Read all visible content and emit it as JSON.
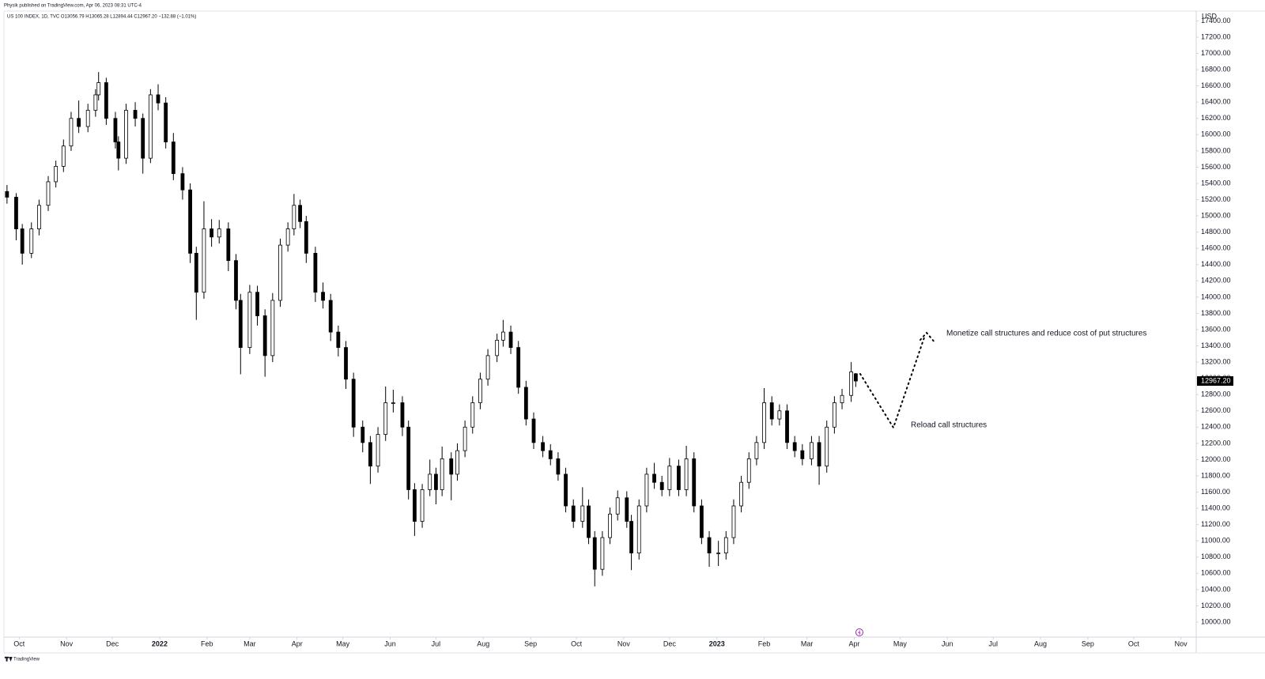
{
  "header": {
    "publisher": "Physik published on TradingView.com, Apr 06, 2023 08:31 UTC-4",
    "symbol_line": "US 100 INDEX, 1D, TVC  O13056.79  H13065.28  L12894.44  C12967.20  −132.88 (−1.01%)",
    "currency": "USD"
  },
  "footer": {
    "brand": "TradingView"
  },
  "chart_data": {
    "type": "candlestick",
    "up_color": "#ffffff",
    "down_color": "#000000",
    "outline_color": "#000000",
    "xlim": [
      -10,
      771
    ],
    "ylim": [
      9815,
      17521
    ],
    "xticks": [
      {
        "value": 0,
        "label": "Oct"
      },
      {
        "value": 31,
        "label": "Nov"
      },
      {
        "value": 61,
        "label": "Dec"
      },
      {
        "value": 92,
        "label": "2022"
      },
      {
        "value": 123,
        "label": "Feb"
      },
      {
        "value": 151,
        "label": "Mar"
      },
      {
        "value": 182,
        "label": "Apr"
      },
      {
        "value": 212,
        "label": "May"
      },
      {
        "value": 243,
        "label": "Jun"
      },
      {
        "value": 273,
        "label": "Jul"
      },
      {
        "value": 304,
        "label": "Aug"
      },
      {
        "value": 335,
        "label": "Sep"
      },
      {
        "value": 365,
        "label": "Oct"
      },
      {
        "value": 396,
        "label": "Nov"
      },
      {
        "value": 426,
        "label": "Dec"
      },
      {
        "value": 457,
        "label": "2023"
      },
      {
        "value": 488,
        "label": "Feb"
      },
      {
        "value": 516,
        "label": "Mar"
      },
      {
        "value": 547,
        "label": "Apr"
      },
      {
        "value": 577,
        "label": "May"
      },
      {
        "value": 608,
        "label": "Jun"
      },
      {
        "value": 638,
        "label": "Jul"
      },
      {
        "value": 669,
        "label": "Aug"
      },
      {
        "value": 700,
        "label": "Sep"
      },
      {
        "value": 730,
        "label": "Oct"
      },
      {
        "value": 761,
        "label": "Nov"
      }
    ],
    "yticks": [
      {
        "value": 10000,
        "label": "10000.00"
      },
      {
        "value": 10200,
        "label": "10200.00"
      },
      {
        "value": 10400,
        "label": "10400.00"
      },
      {
        "value": 10600,
        "label": "10600.00"
      },
      {
        "value": 10800,
        "label": "10800.00"
      },
      {
        "value": 11000,
        "label": "11000.00"
      },
      {
        "value": 11200,
        "label": "11200.00"
      },
      {
        "value": 11400,
        "label": "11400.00"
      },
      {
        "value": 11600,
        "label": "11600.00"
      },
      {
        "value": 11800,
        "label": "11800.00"
      },
      {
        "value": 12000,
        "label": "12000.00"
      },
      {
        "value": 12200,
        "label": "12200.00"
      },
      {
        "value": 12400,
        "label": "12400.00"
      },
      {
        "value": 12600,
        "label": "12600.00"
      },
      {
        "value": 12800,
        "label": "12800.00"
      },
      {
        "value": 13000,
        "label": "13000.00"
      },
      {
        "value": 13200,
        "label": "13200.00"
      },
      {
        "value": 13400,
        "label": "13400.00"
      },
      {
        "value": 13600,
        "label": "13600.00"
      },
      {
        "value": 13800,
        "label": "13800.00"
      },
      {
        "value": 14000,
        "label": "14000.00"
      },
      {
        "value": 14200,
        "label": "14200.00"
      },
      {
        "value": 14400,
        "label": "14400.00"
      },
      {
        "value": 14600,
        "label": "14600.00"
      },
      {
        "value": 14800,
        "label": "14800.00"
      },
      {
        "value": 15000,
        "label": "15000.00"
      },
      {
        "value": 15200,
        "label": "15200.00"
      },
      {
        "value": 15400,
        "label": "15400.00"
      },
      {
        "value": 15600,
        "label": "15600.00"
      },
      {
        "value": 15800,
        "label": "15800.00"
      },
      {
        "value": 16000,
        "label": "16000.00"
      },
      {
        "value": 16200,
        "label": "16200.00"
      },
      {
        "value": 16400,
        "label": "16400.00"
      },
      {
        "value": 16600,
        "label": "16600.00"
      },
      {
        "value": 16800,
        "label": "16800.00"
      },
      {
        "value": 17000,
        "label": "17000.00"
      },
      {
        "value": 17200,
        "label": "17200.00"
      },
      {
        "value": 17400,
        "label": "17400.00"
      }
    ],
    "last_price": {
      "value": 12967.2,
      "label": "12967.20"
    },
    "annotations": [
      "Monetize call structures and reduce cost of put structures",
      "Reload call structures"
    ],
    "candles": [
      {
        "x": -8,
        "open": 15300,
        "high": 15380,
        "low": 15150,
        "close": 15230
      },
      {
        "x": -2,
        "open": 15230,
        "high": 15280,
        "low": 14700,
        "close": 14840
      },
      {
        "x": 2,
        "open": 14840,
        "high": 14900,
        "low": 14400,
        "close": 14540
      },
      {
        "x": 8,
        "open": 14540,
        "high": 14920,
        "low": 14480,
        "close": 14840
      },
      {
        "x": 13,
        "open": 14840,
        "high": 15200,
        "low": 14760,
        "close": 15130
      },
      {
        "x": 19,
        "open": 15130,
        "high": 15490,
        "low": 15060,
        "close": 15420
      },
      {
        "x": 24,
        "open": 15420,
        "high": 15680,
        "low": 15350,
        "close": 15610
      },
      {
        "x": 29,
        "open": 15610,
        "high": 15940,
        "low": 15540,
        "close": 15860
      },
      {
        "x": 34,
        "open": 15860,
        "high": 16280,
        "low": 15800,
        "close": 16200
      },
      {
        "x": 39,
        "open": 16200,
        "high": 16420,
        "low": 16020,
        "close": 16100
      },
      {
        "x": 45,
        "open": 16100,
        "high": 16380,
        "low": 16030,
        "close": 16300
      },
      {
        "x": 50,
        "open": 16300,
        "high": 16560,
        "low": 16220,
        "close": 16490
      },
      {
        "x": 52,
        "open": 16490,
        "high": 16770,
        "low": 16420,
        "close": 16640
      },
      {
        "x": 57,
        "open": 16640,
        "high": 16700,
        "low": 16120,
        "close": 16200
      },
      {
        "x": 63,
        "open": 16200,
        "high": 16280,
        "low": 15830,
        "close": 15910
      },
      {
        "x": 65,
        "open": 15910,
        "high": 15980,
        "low": 15560,
        "close": 15710
      },
      {
        "x": 70,
        "open": 15710,
        "high": 16380,
        "low": 15640,
        "close": 16300
      },
      {
        "x": 76,
        "open": 16300,
        "high": 16400,
        "low": 16100,
        "close": 16200
      },
      {
        "x": 81,
        "open": 16200,
        "high": 16260,
        "low": 15520,
        "close": 15710
      },
      {
        "x": 86,
        "open": 15710,
        "high": 16560,
        "low": 15650,
        "close": 16490
      },
      {
        "x": 91,
        "open": 16490,
        "high": 16620,
        "low": 16300,
        "close": 16390
      },
      {
        "x": 96,
        "open": 16390,
        "high": 16460,
        "low": 15830,
        "close": 15910
      },
      {
        "x": 101,
        "open": 15910,
        "high": 16020,
        "low": 15440,
        "close": 15520
      },
      {
        "x": 107,
        "open": 15520,
        "high": 15600,
        "low": 15200,
        "close": 15320
      },
      {
        "x": 112,
        "open": 15320,
        "high": 15400,
        "low": 14420,
        "close": 14540
      },
      {
        "x": 116,
        "open": 14540,
        "high": 14620,
        "low": 13720,
        "close": 14060
      },
      {
        "x": 121,
        "open": 14060,
        "high": 15180,
        "low": 13980,
        "close": 14840
      },
      {
        "x": 126,
        "open": 14840,
        "high": 14960,
        "low": 14620,
        "close": 14740
      },
      {
        "x": 131,
        "open": 14740,
        "high": 14950,
        "low": 14660,
        "close": 14840
      },
      {
        "x": 137,
        "open": 14840,
        "high": 14920,
        "low": 14320,
        "close": 14450
      },
      {
        "x": 142,
        "open": 14450,
        "high": 14530,
        "low": 13850,
        "close": 13960
      },
      {
        "x": 145,
        "open": 13960,
        "high": 14040,
        "low": 13050,
        "close": 13380
      },
      {
        "x": 151,
        "open": 13380,
        "high": 14150,
        "low": 13300,
        "close": 14060
      },
      {
        "x": 156,
        "open": 14060,
        "high": 14140,
        "low": 13650,
        "close": 13770
      },
      {
        "x": 161,
        "open": 13770,
        "high": 13850,
        "low": 13020,
        "close": 13280
      },
      {
        "x": 166,
        "open": 13280,
        "high": 14050,
        "low": 13200,
        "close": 13960
      },
      {
        "x": 171,
        "open": 13960,
        "high": 14720,
        "low": 13880,
        "close": 14640
      },
      {
        "x": 176,
        "open": 14640,
        "high": 14920,
        "low": 14560,
        "close": 14840
      },
      {
        "x": 180,
        "open": 14840,
        "high": 15270,
        "low": 14760,
        "close": 15130
      },
      {
        "x": 184,
        "open": 15130,
        "high": 15200,
        "low": 14850,
        "close": 14930
      },
      {
        "x": 188,
        "open": 14930,
        "high": 15000,
        "low": 14420,
        "close": 14540
      },
      {
        "x": 194,
        "open": 14540,
        "high": 14620,
        "low": 13940,
        "close": 14060
      },
      {
        "x": 199,
        "open": 14060,
        "high": 14180,
        "low": 13860,
        "close": 13960
      },
      {
        "x": 204,
        "open": 13960,
        "high": 14040,
        "low": 13460,
        "close": 13570
      },
      {
        "x": 209,
        "open": 13570,
        "high": 13650,
        "low": 13270,
        "close": 13380
      },
      {
        "x": 214,
        "open": 13380,
        "high": 13460,
        "low": 12870,
        "close": 12990
      },
      {
        "x": 219,
        "open": 12990,
        "high": 13070,
        "low": 12280,
        "close": 12400
      },
      {
        "x": 225,
        "open": 12400,
        "high": 12480,
        "low": 12090,
        "close": 12210
      },
      {
        "x": 230,
        "open": 12210,
        "high": 12290,
        "low": 11700,
        "close": 11920
      },
      {
        "x": 235,
        "open": 11920,
        "high": 12400,
        "low": 11840,
        "close": 12310
      },
      {
        "x": 240,
        "open": 12310,
        "high": 12900,
        "low": 12230,
        "close": 12700
      },
      {
        "x": 245,
        "open": 12700,
        "high": 12860,
        "low": 12580,
        "close": 12700
      },
      {
        "x": 251,
        "open": 12700,
        "high": 12780,
        "low": 12290,
        "close": 12400
      },
      {
        "x": 255,
        "open": 12400,
        "high": 12480,
        "low": 11510,
        "close": 11630
      },
      {
        "x": 259,
        "open": 11630,
        "high": 11710,
        "low": 11060,
        "close": 11240
      },
      {
        "x": 264,
        "open": 11240,
        "high": 11700,
        "low": 11160,
        "close": 11630
      },
      {
        "x": 269,
        "open": 11630,
        "high": 12000,
        "low": 11550,
        "close": 11820
      },
      {
        "x": 273,
        "open": 11820,
        "high": 11900,
        "low": 11450,
        "close": 11630
      },
      {
        "x": 277,
        "open": 11630,
        "high": 12160,
        "low": 11550,
        "close": 12010
      },
      {
        "x": 283,
        "open": 12010,
        "high": 12090,
        "low": 11500,
        "close": 11820
      },
      {
        "x": 287,
        "open": 11820,
        "high": 12200,
        "low": 11740,
        "close": 12110
      },
      {
        "x": 292,
        "open": 12110,
        "high": 12480,
        "low": 12030,
        "close": 12400
      },
      {
        "x": 297,
        "open": 12400,
        "high": 12780,
        "low": 12320,
        "close": 12700
      },
      {
        "x": 302,
        "open": 12700,
        "high": 13070,
        "low": 12620,
        "close": 12990
      },
      {
        "x": 307,
        "open": 12990,
        "high": 13360,
        "low": 12910,
        "close": 13280
      },
      {
        "x": 313,
        "open": 13280,
        "high": 13550,
        "low": 13200,
        "close": 13470
      },
      {
        "x": 317,
        "open": 13470,
        "high": 13720,
        "low": 13390,
        "close": 13570
      },
      {
        "x": 322,
        "open": 13570,
        "high": 13650,
        "low": 13300,
        "close": 13380
      },
      {
        "x": 327,
        "open": 13380,
        "high": 13460,
        "low": 12810,
        "close": 12890
      },
      {
        "x": 332,
        "open": 12890,
        "high": 12970,
        "low": 12420,
        "close": 12500
      },
      {
        "x": 337,
        "open": 12500,
        "high": 12580,
        "low": 12130,
        "close": 12210
      },
      {
        "x": 343,
        "open": 12210,
        "high": 12290,
        "low": 12030,
        "close": 12110
      },
      {
        "x": 348,
        "open": 12110,
        "high": 12190,
        "low": 11930,
        "close": 12010
      },
      {
        "x": 353,
        "open": 12010,
        "high": 12090,
        "low": 11740,
        "close": 11820
      },
      {
        "x": 358,
        "open": 11820,
        "high": 11900,
        "low": 11350,
        "close": 11430
      },
      {
        "x": 363,
        "open": 11430,
        "high": 11510,
        "low": 11160,
        "close": 11240
      },
      {
        "x": 369,
        "open": 11240,
        "high": 11660,
        "low": 11160,
        "close": 11430
      },
      {
        "x": 373,
        "open": 11430,
        "high": 11510,
        "low": 10960,
        "close": 11040
      },
      {
        "x": 377,
        "open": 11040,
        "high": 11120,
        "low": 10440,
        "close": 10650
      },
      {
        "x": 382,
        "open": 10650,
        "high": 11120,
        "low": 10570,
        "close": 11040
      },
      {
        "x": 387,
        "open": 11040,
        "high": 11410,
        "low": 10960,
        "close": 11330
      },
      {
        "x": 392,
        "open": 11330,
        "high": 11620,
        "low": 11250,
        "close": 11530
      },
      {
        "x": 398,
        "open": 11530,
        "high": 11610,
        "low": 11160,
        "close": 11240
      },
      {
        "x": 401,
        "open": 11240,
        "high": 11320,
        "low": 10640,
        "close": 10850
      },
      {
        "x": 406,
        "open": 10850,
        "high": 11510,
        "low": 10770,
        "close": 11430
      },
      {
        "x": 411,
        "open": 11430,
        "high": 11900,
        "low": 11350,
        "close": 11820
      },
      {
        "x": 416,
        "open": 11820,
        "high": 11960,
        "low": 11640,
        "close": 11720
      },
      {
        "x": 421,
        "open": 11720,
        "high": 11800,
        "low": 11550,
        "close": 11630
      },
      {
        "x": 426,
        "open": 11630,
        "high": 12020,
        "low": 11550,
        "close": 11920
      },
      {
        "x": 432,
        "open": 11920,
        "high": 12000,
        "low": 11550,
        "close": 11630
      },
      {
        "x": 437,
        "open": 11630,
        "high": 12170,
        "low": 11550,
        "close": 12010
      },
      {
        "x": 442,
        "open": 12010,
        "high": 12090,
        "low": 11350,
        "close": 11430
      },
      {
        "x": 447,
        "open": 11430,
        "high": 11510,
        "low": 10960,
        "close": 11040
      },
      {
        "x": 452,
        "open": 11040,
        "high": 11120,
        "low": 10680,
        "close": 10850
      },
      {
        "x": 458,
        "open": 10850,
        "high": 11000,
        "low": 10690,
        "close": 10850
      },
      {
        "x": 463,
        "open": 10850,
        "high": 11120,
        "low": 10770,
        "close": 11040
      },
      {
        "x": 468,
        "open": 11040,
        "high": 11510,
        "low": 10960,
        "close": 11430
      },
      {
        "x": 473,
        "open": 11430,
        "high": 11800,
        "low": 11350,
        "close": 11720
      },
      {
        "x": 478,
        "open": 11720,
        "high": 12090,
        "low": 11640,
        "close": 12010
      },
      {
        "x": 483,
        "open": 12010,
        "high": 12290,
        "low": 11930,
        "close": 12210
      },
      {
        "x": 488,
        "open": 12210,
        "high": 12880,
        "low": 12130,
        "close": 12700
      },
      {
        "x": 493,
        "open": 12700,
        "high": 12780,
        "low": 12420,
        "close": 12500
      },
      {
        "x": 498,
        "open": 12500,
        "high": 12680,
        "low": 12420,
        "close": 12600
      },
      {
        "x": 503,
        "open": 12600,
        "high": 12680,
        "low": 12130,
        "close": 12210
      },
      {
        "x": 508,
        "open": 12210,
        "high": 12290,
        "low": 12030,
        "close": 12110
      },
      {
        "x": 513,
        "open": 12110,
        "high": 12190,
        "low": 11930,
        "close": 12010
      },
      {
        "x": 519,
        "open": 12010,
        "high": 12290,
        "low": 11930,
        "close": 12210
      },
      {
        "x": 524,
        "open": 12210,
        "high": 12290,
        "low": 11690,
        "close": 11920
      },
      {
        "x": 529,
        "open": 11920,
        "high": 12480,
        "low": 11840,
        "close": 12400
      },
      {
        "x": 534,
        "open": 12400,
        "high": 12780,
        "low": 12320,
        "close": 12700
      },
      {
        "x": 539,
        "open": 12700,
        "high": 12870,
        "low": 12620,
        "close": 12790
      },
      {
        "x": 545,
        "open": 12790,
        "high": 13200,
        "low": 12710,
        "close": 13080
      },
      {
        "x": 548,
        "open": 13056.79,
        "high": 13065.28,
        "low": 12894.44,
        "close": 12967.2
      }
    ]
  }
}
